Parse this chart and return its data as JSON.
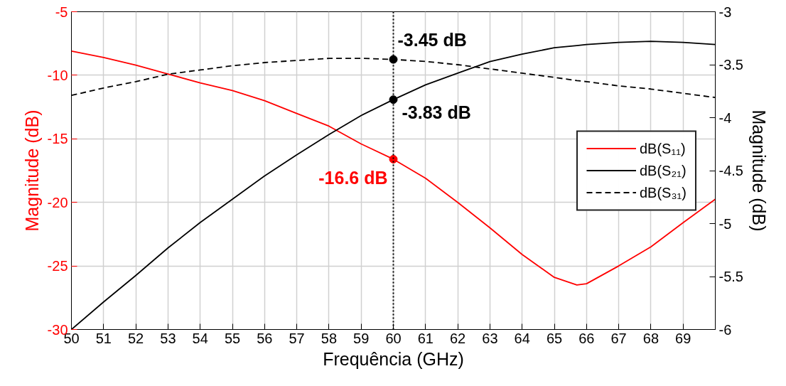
{
  "chart_data": {
    "type": "line",
    "xlabel": "Frequência (GHz)",
    "ylabel": "Magnitude (dB)",
    "y2label": "Magnitude (dB)",
    "x": [
      50,
      51,
      52,
      53,
      54,
      55,
      56,
      57,
      58,
      59,
      60,
      61,
      62,
      63,
      64,
      65,
      65.7,
      66,
      67,
      68,
      69,
      70
    ],
    "series": [
      {
        "name": "dB(S₁₁)",
        "color": "#ff0000",
        "axis": "y",
        "line_style": "solid",
        "values": [
          -8.1,
          -8.6,
          -9.2,
          -9.9,
          -10.6,
          -11.2,
          -12.0,
          -13.0,
          -14.0,
          -15.4,
          -16.6,
          -18.1,
          -20.0,
          -22.0,
          -24.1,
          -25.9,
          -26.5,
          -26.4,
          -25.0,
          -23.5,
          -21.6,
          -19.75
        ]
      },
      {
        "name": "dB(S₂₁)",
        "color": "#000000",
        "axis": "y2",
        "line_style": "solid",
        "values": [
          -6.0,
          -5.74,
          -5.49,
          -5.23,
          -4.99,
          -4.77,
          -4.55,
          -4.35,
          -4.16,
          -3.98,
          -3.83,
          -3.69,
          -3.58,
          -3.47,
          -3.4,
          -3.34,
          -3.32,
          -3.31,
          -3.29,
          -3.28,
          -3.29,
          -3.31
        ]
      },
      {
        "name": "dB(S₃₁)",
        "color": "#000000",
        "axis": "y2",
        "line_style": "dashed",
        "values": [
          -3.79,
          -3.72,
          -3.66,
          -3.59,
          -3.55,
          -3.51,
          -3.48,
          -3.46,
          -3.44,
          -3.44,
          -3.45,
          -3.47,
          -3.5,
          -3.54,
          -3.58,
          -3.62,
          -3.65,
          -3.66,
          -3.7,
          -3.73,
          -3.77,
          -3.81
        ]
      },
      {
        "type": "scatter",
        "color": "#ff0000",
        "axis": "y",
        "marker": "circle",
        "values": [
          null,
          null,
          null,
          null,
          null,
          null,
          null,
          null,
          null,
          null,
          -16.6,
          null,
          null,
          null,
          null,
          null,
          null,
          null,
          null,
          null,
          null,
          null
        ],
        "value_labels": [
          null,
          null,
          null,
          null,
          null,
          null,
          null,
          null,
          null,
          null,
          "-16.6 dB",
          null,
          null,
          null,
          null,
          null,
          null,
          null,
          null,
          null,
          null,
          null
        ]
      },
      {
        "type": "scatter",
        "color": "#000000",
        "axis": "y2",
        "marker": "circle",
        "values": [
          null,
          null,
          null,
          null,
          null,
          null,
          null,
          null,
          null,
          null,
          -3.83,
          null,
          null,
          null,
          null,
          null,
          null,
          null,
          null,
          null,
          null,
          null
        ],
        "value_labels": [
          null,
          null,
          null,
          null,
          null,
          null,
          null,
          null,
          null,
          null,
          "-3.83 dB",
          null,
          null,
          null,
          null,
          null,
          null,
          null,
          null,
          null,
          null,
          null
        ]
      },
      {
        "type": "scatter",
        "color": "#000000",
        "axis": "y2",
        "marker": "circle",
        "values": [
          null,
          null,
          null,
          null,
          null,
          null,
          null,
          null,
          null,
          null,
          -3.45,
          null,
          null,
          null,
          null,
          null,
          null,
          null,
          null,
          null,
          null,
          null
        ],
        "value_labels": [
          null,
          null,
          null,
          null,
          null,
          null,
          null,
          null,
          null,
          null,
          "-3.45 dB",
          null,
          null,
          null,
          null,
          null,
          null,
          null,
          null,
          null,
          null,
          null
        ]
      }
    ],
    "xlim": [
      50,
      70
    ],
    "xticks": [
      50,
      51,
      52,
      53,
      54,
      55,
      56,
      57,
      58,
      59,
      60,
      61,
      62,
      63,
      64,
      65,
      66,
      67,
      68,
      69
    ],
    "ylim": [
      -30,
      -5
    ],
    "yticks": [
      -30,
      -25,
      -20,
      -15,
      -10,
      -5
    ],
    "y2lim": [
      -6,
      -3
    ],
    "y2ticks": [
      -6,
      -5.5,
      -5,
      -4.5,
      -4,
      -3.5,
      -3
    ],
    "ref_lines": [
      {
        "axis": "x",
        "value": 60,
        "color": "#000000",
        "line_style": "dotted"
      }
    ],
    "grid": true,
    "legend": "right",
    "marker": "none"
  }
}
